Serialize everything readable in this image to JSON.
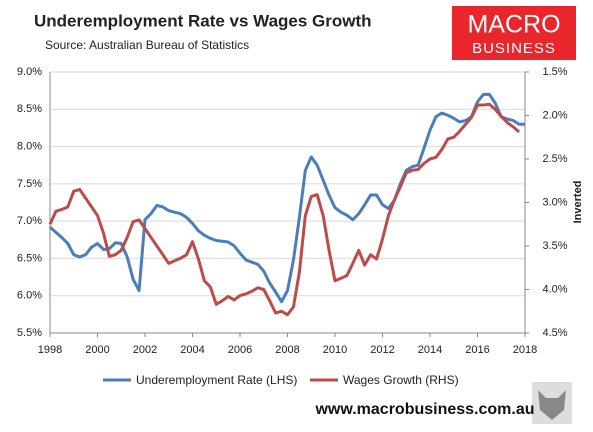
{
  "chart_data": {
    "type": "line",
    "title": "Underemployment Rate vs Wages Growth",
    "subtitle": "Source: Australian Bureau of Statistics",
    "logo": {
      "line1": "MACRO",
      "line2": "BUSINESS"
    },
    "footer": "www.macrobusiness.com.au",
    "y2label": "Inverted",
    "y2_inverted": true,
    "x": [
      1998,
      1998.25,
      1998.5,
      1998.75,
      1999,
      1999.25,
      1999.5,
      1999.75,
      2000,
      2000.25,
      2000.5,
      2000.75,
      2001,
      2001.25,
      2001.5,
      2001.75,
      2002,
      2002.25,
      2002.5,
      2002.75,
      2003,
      2003.25,
      2003.5,
      2003.75,
      2004,
      2004.25,
      2004.5,
      2004.75,
      2005,
      2005.25,
      2005.5,
      2005.75,
      2006,
      2006.25,
      2006.5,
      2006.75,
      2007,
      2007.25,
      2007.5,
      2007.75,
      2008,
      2008.25,
      2008.5,
      2008.75,
      2009,
      2009.25,
      2009.5,
      2009.75,
      2010,
      2010.25,
      2010.5,
      2010.75,
      2011,
      2011.25,
      2011.5,
      2011.75,
      2012,
      2012.25,
      2012.5,
      2012.75,
      2013,
      2013.25,
      2013.5,
      2013.75,
      2014,
      2014.25,
      2014.5,
      2014.75,
      2015,
      2015.25,
      2015.5,
      2015.75,
      2016,
      2016.25,
      2016.5,
      2016.75,
      2017,
      2017.25,
      2017.5,
      2017.75,
      2018
    ],
    "series": [
      {
        "name": "Underemployment Rate (LHS)",
        "color": "#4a7ebb",
        "values": [
          6.92,
          6.85,
          6.78,
          6.7,
          6.55,
          6.52,
          6.55,
          6.65,
          6.7,
          6.62,
          6.63,
          6.71,
          6.7,
          6.52,
          6.22,
          6.07,
          7.02,
          7.1,
          7.21,
          7.19,
          7.14,
          7.12,
          7.1,
          7.05,
          6.97,
          6.87,
          6.81,
          6.77,
          6.74,
          6.73,
          6.72,
          6.67,
          6.57,
          6.48,
          6.45,
          6.42,
          6.33,
          6.17,
          6.05,
          5.92,
          6.07,
          6.48,
          7.05,
          7.68,
          7.86,
          7.75,
          7.55,
          7.35,
          7.18,
          7.12,
          7.08,
          7.02,
          7.1,
          7.22,
          7.35,
          7.35,
          7.22,
          7.17,
          7.28,
          7.5,
          7.68,
          7.73,
          7.75,
          7.98,
          8.22,
          8.4,
          8.45,
          8.42,
          8.38,
          8.33,
          8.35,
          8.4,
          8.6,
          8.7,
          8.7,
          8.58,
          8.4,
          8.37,
          8.35,
          8.3,
          8.3
        ]
      },
      {
        "name": "Wages Growth (RHS)",
        "color": "#be4b48",
        "axis": "y2",
        "values": [
          3.25,
          3.1,
          3.08,
          3.05,
          2.87,
          2.85,
          2.95,
          3.05,
          3.15,
          3.35,
          3.62,
          3.6,
          3.55,
          3.4,
          3.22,
          3.2,
          3.3,
          3.4,
          3.5,
          3.6,
          3.7,
          3.67,
          3.64,
          3.6,
          3.45,
          3.65,
          3.9,
          3.97,
          4.17,
          4.13,
          4.08,
          4.12,
          4.07,
          4.05,
          4.02,
          3.98,
          4.0,
          4.13,
          4.27,
          4.25,
          4.29,
          4.2,
          3.8,
          3.15,
          2.93,
          2.91,
          3.15,
          3.55,
          3.9,
          3.87,
          3.84,
          3.7,
          3.55,
          3.72,
          3.6,
          3.65,
          3.42,
          3.15,
          2.97,
          2.82,
          2.66,
          2.63,
          2.62,
          2.55,
          2.5,
          2.48,
          2.39,
          2.27,
          2.25,
          2.18,
          2.1,
          2.02,
          1.88,
          1.88,
          1.87,
          1.93,
          2.01,
          2.08,
          2.13,
          2.19,
          null
        ]
      }
    ],
    "xlim": [
      1998,
      2018
    ],
    "xticks": [
      1998,
      2000,
      2002,
      2004,
      2006,
      2008,
      2010,
      2012,
      2014,
      2016,
      2018
    ],
    "ylim": [
      5.5,
      9
    ],
    "yticks": [
      {
        "value": 5.5,
        "label": "5.5%"
      },
      {
        "value": 6,
        "label": "6.0%"
      },
      {
        "value": 6.5,
        "label": "6.5%"
      },
      {
        "value": 7,
        "label": "7.0%"
      },
      {
        "value": 7.5,
        "label": "7.5%"
      },
      {
        "value": 8,
        "label": "8.0%"
      },
      {
        "value": 8.5,
        "label": "8.5%"
      },
      {
        "value": 9,
        "label": "9.0%"
      }
    ],
    "y2lim": [
      1.5,
      4.5
    ],
    "y2ticks": [
      {
        "value": 1.5,
        "label": "1.5%"
      },
      {
        "value": 2,
        "label": "2.0%"
      },
      {
        "value": 2.5,
        "label": "2.5%"
      },
      {
        "value": 3,
        "label": "3.0%"
      },
      {
        "value": 3.5,
        "label": "3.5%"
      },
      {
        "value": 4,
        "label": "4.0%"
      },
      {
        "value": 4.5,
        "label": "4.5%"
      }
    ],
    "grid": true
  }
}
